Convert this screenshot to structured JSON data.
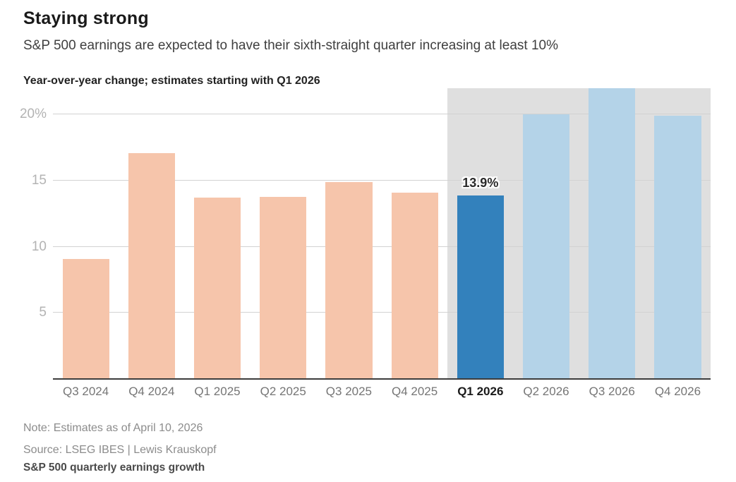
{
  "header": {
    "title": "Staying strong",
    "subtitle": "S&P 500 earnings are expected to have their sixth-straight quarter increasing at least 10%"
  },
  "kicker": "Year-over-year change; estimates starting with Q1 2026",
  "footer": {
    "note": "Note: Estimates as of April 10, 2026",
    "source": "Source: LSEG IBES | Lewis Krauskopf",
    "tag": "S&P 500 quarterly earnings growth"
  },
  "chart_data": {
    "type": "bar",
    "title": "Year-over-year change; estimates starting with Q1 2026",
    "xlabel": "",
    "ylabel": "Year-over-year change (%)",
    "ylim": [
      0,
      22
    ],
    "grid": "horizontal",
    "yticks": [
      {
        "value": 5,
        "label": "5"
      },
      {
        "value": 10,
        "label": "10"
      },
      {
        "value": 15,
        "label": "15"
      },
      {
        "value": 20,
        "label": "20%"
      }
    ],
    "categories": [
      "Q3 2024",
      "Q4 2024",
      "Q1 2025",
      "Q2 2025",
      "Q3 2025",
      "Q4 2025",
      "Q1 2026",
      "Q2 2026",
      "Q3 2026",
      "Q4 2026"
    ],
    "values": [
      9.1,
      17.1,
      13.7,
      13.8,
      14.9,
      14.1,
      13.9,
      20.0,
      22.0,
      19.9
    ],
    "roles": [
      "actual",
      "actual",
      "actual",
      "actual",
      "actual",
      "actual",
      "highlight",
      "estimate",
      "estimate",
      "estimate"
    ],
    "value_labels": [
      null,
      null,
      null,
      null,
      null,
      null,
      "13.9%",
      null,
      null,
      null
    ],
    "emphasized_category_index": 6,
    "estimate_band_start_index": 6,
    "colors": {
      "actual": "#f6c5ab",
      "highlight": "#3381bc",
      "estimate": "#b4d3e8",
      "estimate_band": "#dfdfdf",
      "gridline": "#d2d2d2",
      "axis": "#3d3d3d"
    }
  }
}
